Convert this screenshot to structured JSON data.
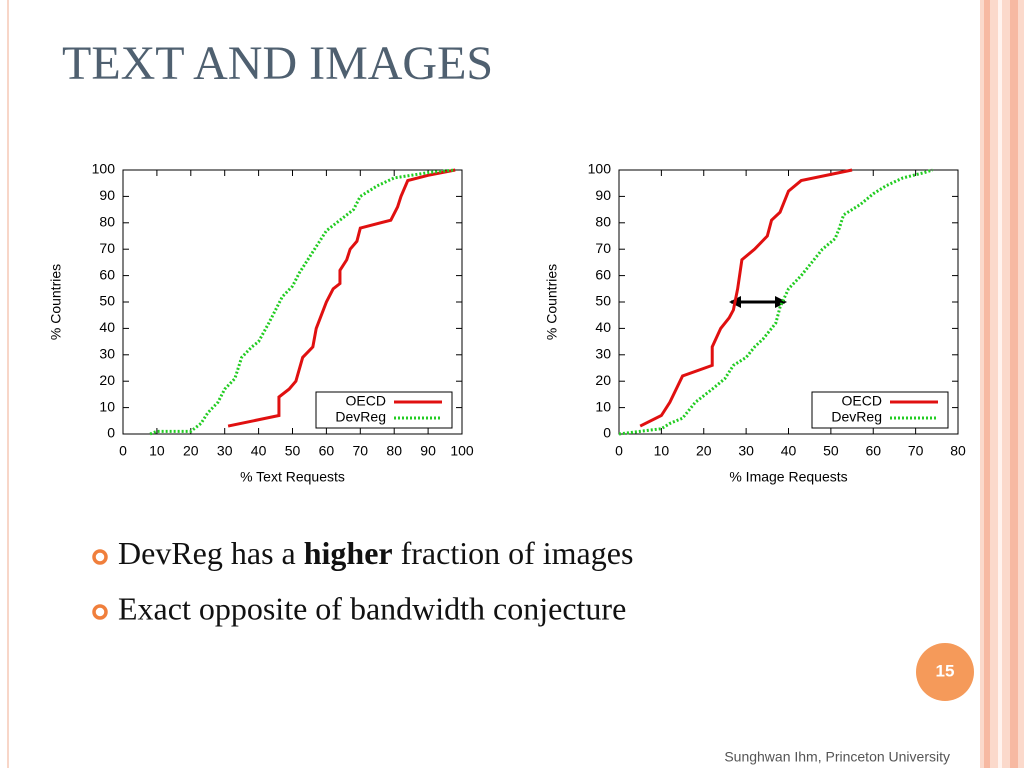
{
  "title": "TEXT AND IMAGES",
  "chart_data": [
    {
      "type": "line",
      "xlabel": "% Text Requests",
      "ylabel": "% Countries",
      "xlim": [
        0,
        100
      ],
      "ylim": [
        0,
        100
      ],
      "xticks": [
        0,
        10,
        20,
        30,
        40,
        50,
        60,
        70,
        80,
        90,
        100
      ],
      "yticks": [
        0,
        10,
        20,
        30,
        40,
        50,
        60,
        70,
        80,
        90,
        100
      ],
      "legend": "bottom-right",
      "series": [
        {
          "name": "OECD",
          "color": "#e01010",
          "style": "solid",
          "x": [
            31,
            46,
            46,
            49,
            51,
            53,
            56,
            57,
            60,
            62,
            64,
            64,
            66,
            67,
            69,
            70,
            79,
            81,
            82,
            84,
            90,
            98
          ],
          "values": [
            3,
            7,
            14,
            17,
            20,
            29,
            33,
            40,
            50,
            55,
            57,
            62,
            66,
            70,
            73,
            78,
            81,
            86,
            90,
            96,
            98,
            100
          ]
        },
        {
          "name": "DevReg",
          "color": "#22cc22",
          "style": "dotted",
          "x": [
            8,
            10,
            20,
            23,
            25,
            28,
            30,
            33,
            35,
            38,
            40,
            43,
            45,
            47,
            50,
            52,
            55,
            58,
            60,
            63,
            65,
            68,
            70,
            75,
            80,
            85,
            90,
            98
          ],
          "values": [
            0,
            1,
            1,
            4,
            8,
            12,
            17,
            21,
            29,
            33,
            35,
            42,
            47,
            52,
            56,
            61,
            67,
            73,
            77,
            80,
            82,
            85,
            90,
            94,
            97,
            98,
            99,
            100
          ]
        }
      ]
    },
    {
      "type": "line",
      "xlabel": "% Image Requests",
      "ylabel": "% Countries",
      "xlim": [
        0,
        80
      ],
      "ylim": [
        0,
        100
      ],
      "xticks": [
        0,
        10,
        20,
        30,
        40,
        50,
        60,
        70,
        80
      ],
      "yticks": [
        0,
        10,
        20,
        30,
        40,
        50,
        60,
        70,
        80,
        90,
        100
      ],
      "legend": "bottom-right",
      "series": [
        {
          "name": "OECD",
          "color": "#e01010",
          "style": "solid",
          "x": [
            5,
            10,
            12,
            15,
            22,
            22,
            24,
            26,
            27,
            28,
            29,
            32,
            35,
            36,
            38,
            40,
            43,
            55
          ],
          "values": [
            3,
            7,
            12,
            22,
            26,
            33,
            40,
            44,
            47,
            55,
            66,
            70,
            75,
            81,
            84,
            92,
            96,
            100
          ]
        },
        {
          "name": "DevReg",
          "color": "#22cc22",
          "style": "dotted",
          "x": [
            0,
            5,
            10,
            12,
            15,
            18,
            22,
            25,
            27,
            30,
            32,
            34,
            37,
            38,
            40,
            43,
            45,
            48,
            51,
            52,
            53,
            55,
            57,
            60,
            63,
            67,
            72,
            74
          ],
          "values": [
            0,
            1,
            2,
            4,
            6,
            12,
            17,
            21,
            26,
            29,
            33,
            36,
            42,
            48,
            55,
            60,
            64,
            70,
            74,
            78,
            83,
            85,
            87,
            91,
            94,
            97,
            99,
            100
          ]
        }
      ]
    }
  ],
  "bullets": [
    {
      "before": "DevReg has a ",
      "bold": "higher",
      "after": " fraction of images"
    },
    "Exact opposite of bandwidth conjecture"
  ],
  "page_number": "15",
  "footer": "Sunghwan Ihm, Princeton University"
}
